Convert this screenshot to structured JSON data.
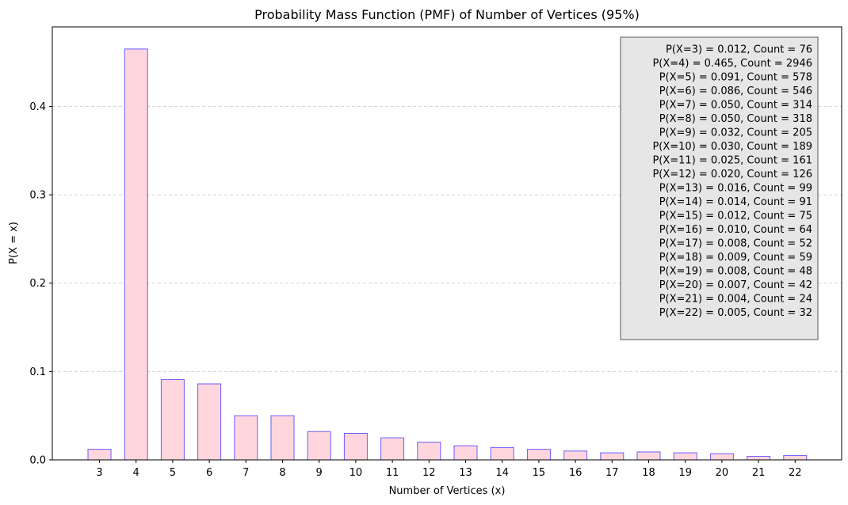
{
  "chart_data": {
    "type": "bar",
    "title": "Probability Mass Function (PMF) of Number of Vertices (95%)",
    "xlabel": "Number of Vertices (x)",
    "ylabel": "P(X = x)",
    "categories": [
      "3",
      "4",
      "5",
      "6",
      "7",
      "8",
      "9",
      "10",
      "11",
      "12",
      "13",
      "14",
      "15",
      "16",
      "17",
      "18",
      "19",
      "20",
      "21",
      "22"
    ],
    "values": [
      0.012,
      0.465,
      0.091,
      0.086,
      0.05,
      0.05,
      0.032,
      0.03,
      0.025,
      0.02,
      0.016,
      0.014,
      0.012,
      0.01,
      0.008,
      0.009,
      0.008,
      0.007,
      0.004,
      0.005
    ],
    "counts": [
      76,
      2946,
      578,
      546,
      314,
      318,
      205,
      189,
      161,
      126,
      99,
      91,
      75,
      64,
      52,
      59,
      48,
      42,
      24,
      32
    ],
    "ylim": [
      0,
      0.49
    ],
    "yticks": [
      "0.0",
      "0.1",
      "0.2",
      "0.3",
      "0.4"
    ],
    "grid": "horizontal dashed",
    "legend_placement": "top-right",
    "bar_fill": "#ffd6dd",
    "bar_edge": "#6b5cff",
    "annotation_box_fill": "#e6e6e6",
    "annotation_lines": [
      "P(X=3) = 0.012, Count = 76",
      "P(X=4) = 0.465, Count = 2946",
      "P(X=5) = 0.091, Count = 578",
      "P(X=6) = 0.086, Count = 546",
      "P(X=7) = 0.050, Count = 314",
      "P(X=8) = 0.050, Count = 318",
      "P(X=9) = 0.032, Count = 205",
      "P(X=10) = 0.030, Count = 189",
      "P(X=11) = 0.025, Count = 161",
      "P(X=12) = 0.020, Count = 126",
      "P(X=13) = 0.016, Count = 99",
      "P(X=14) = 0.014, Count = 91",
      "P(X=15) = 0.012, Count = 75",
      "P(X=16) = 0.010, Count = 64",
      "P(X=17) = 0.008, Count = 52",
      "P(X=18) = 0.009, Count = 59",
      "P(X=19) = 0.008, Count = 48",
      "P(X=20) = 0.007, Count = 42",
      "P(X=21) = 0.004, Count = 24",
      "P(X=22) = 0.005, Count = 32"
    ]
  }
}
